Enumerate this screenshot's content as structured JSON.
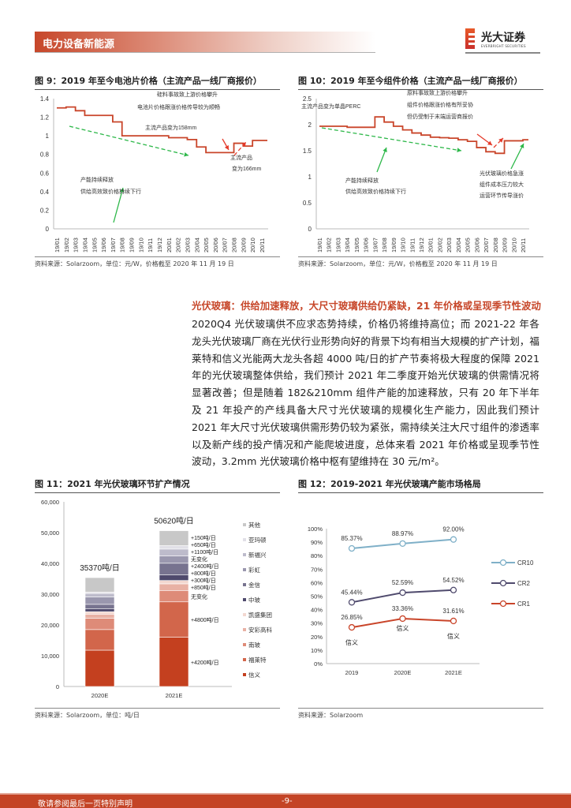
{
  "header": {
    "section": "电力设备新能源",
    "logo_cn": "光大证券",
    "logo_en": "EVERBRIGHT SECURITIES"
  },
  "fig9": {
    "title": "图 9：2019 年至今电池片价格（主流产品一线厂商报价）",
    "source": "资料来源：Solarzoom，单位：元/W，价格截至 2020 年 11 月 19 日",
    "annotations": [
      "主流产品变为158mm",
      "硅料事故致上游价格攀升",
      "电池片价格跟涨价格传导较为顺畅",
      "产能持续释放",
      "供给高效致价格持续下行",
      "主流产品",
      "变为166mm"
    ],
    "chart_data": {
      "type": "line",
      "ylim": [
        0,
        1.4
      ],
      "yticks": [
        "0",
        "0.2",
        "0.4",
        "0.6",
        "0.8",
        "1",
        "1.2",
        "1.4"
      ],
      "categories": [
        "19/01",
        "19/02",
        "19/03",
        "19/04",
        "19/05",
        "19/06",
        "19/07",
        "19/08",
        "19/09",
        "19/10",
        "19/11",
        "19/12",
        "20/01",
        "20/02",
        "20/03",
        "20/04",
        "20/05",
        "20/06",
        "20/07",
        "20/08",
        "20/09",
        "20/10",
        "20/11"
      ],
      "values": [
        1.3,
        1.31,
        1.27,
        1.22,
        1.22,
        1.22,
        1.15,
        1.0,
        1.0,
        1.0,
        1.0,
        1.0,
        0.98,
        0.98,
        0.96,
        0.88,
        0.82,
        0.82,
        0.82,
        0.92,
        0.89,
        0.95,
        0.95
      ],
      "color": "#c9452a"
    }
  },
  "fig10": {
    "title": "图 10：2019 年至今组件价格（主流产品一线厂商报价）",
    "source": "资料来源：Solarzoom，单位：元/W，价格截至 2020 年 11 月 19 日",
    "annotations": [
      "主流产品变为单晶PERC",
      "原料事故致上游价格攀升",
      "组件价格跟涨价格有所妥协",
      "但仍受制于末端运营商报价",
      "产能持续释放",
      "供给高效致价格持续下行",
      "光伏玻璃价格急涨",
      "组件成本压力较大",
      "运营环节传导涨价"
    ],
    "chart_data": {
      "type": "line",
      "ylim": [
        0,
        2.5
      ],
      "yticks": [
        "0",
        "0.5",
        "1",
        "1.5",
        "2",
        "2.5"
      ],
      "categories": [
        "19/01",
        "19/02",
        "19/03",
        "19/04",
        "19/05",
        "19/06",
        "19/07",
        "19/08",
        "19/09",
        "19/10",
        "19/11",
        "19/12",
        "20/01",
        "20/02",
        "20/03",
        "20/04",
        "20/05",
        "20/06",
        "20/07",
        "20/08",
        "20/09",
        "20/10",
        "20/11"
      ],
      "values": [
        1.97,
        1.97,
        1.97,
        1.95,
        1.95,
        1.95,
        2.15,
        2.05,
        1.97,
        1.9,
        1.84,
        1.8,
        1.76,
        1.75,
        1.74,
        1.71,
        1.68,
        1.56,
        1.48,
        1.45,
        1.69,
        1.69,
        1.71
      ],
      "color": "#c9452a"
    }
  },
  "body": {
    "heading": "光伏玻璃：供给加速释放，大尺寸玻璃供给仍紧缺，21 年价格或呈现季节性波动",
    "paragraph": "2020Q4 光伏玻璃供不应求态势持续，价格仍将维持高位；而 2021-22 年各龙头光伏玻璃厂商在光伏行业形势向好的背景下均有相当大规模的扩产计划，福莱特和信义光能两大龙头各超 4000 吨/日的扩产节奏将极大程度的保障 2021 年的光伏玻璃整体供给，我们预计 2021 年二季度开始光伏玻璃的供需情况将显著改善；但是随着 182&210mm 组件产能的加速释放，只有 20 年下半年及 21 年投产的产线具备大尺寸光伏玻璃的规模化生产能力，因此我们预计 2021 年大尺寸光伏玻璃供需形势仍较为紧张，需持续关注大尺寸组件的渗透率以及新产线的投产情况和产能爬坡进度，总体来看 2021 年价格或呈现季节性波动，3.2mm 光伏玻璃价格中枢有望维持在 30 元/m²。"
  },
  "fig11": {
    "title": "图 11：2021 年光伏玻璃环节扩产情况",
    "source": "资料来源：Solarzoom，单位：吨/日",
    "chart_data": {
      "type": "bar",
      "stacked": true,
      "ylim": [
        0,
        60000
      ],
      "yticks": [
        "0",
        "10,000",
        "20,000",
        "30,000",
        "40,000",
        "50,000",
        "60,000"
      ],
      "categories": [
        "2020E",
        "2021E"
      ],
      "totals": [
        "35370吨/日",
        "50620吨/日"
      ],
      "series": [
        {
          "name": "信义",
          "color": "#c4401f",
          "values": [
            11800,
            16000
          ],
          "label": "+4200吨/日"
        },
        {
          "name": "福莱特",
          "color": "#d2664b",
          "values": [
            6700,
            11500
          ],
          "label": "+4800吨/日"
        },
        {
          "name": "南玻",
          "color": "#de8b78",
          "values": [
            3700,
            3700
          ],
          "label": "无变化"
        },
        {
          "name": "安彩高科",
          "color": "#e8b1a4",
          "values": [
            1300,
            2150
          ],
          "label": "+850吨/日"
        },
        {
          "name": "凯盛集团",
          "color": "#f3d8d0",
          "values": [
            800,
            1100
          ],
          "label": "+300吨/日"
        },
        {
          "name": "中玻",
          "color": "#4f4a6d",
          "values": [
            1000,
            1800
          ],
          "label": "+800吨/日"
        },
        {
          "name": "金信",
          "color": "#77738f",
          "values": [
            1400,
            3800
          ],
          "label": "+2400吨/日"
        },
        {
          "name": "彩虹",
          "color": "#9a97ae",
          "values": [
            2400,
            2400
          ],
          "label": "无变化"
        },
        {
          "name": "新福兴",
          "color": "#bdbbcb",
          "values": [
            1100,
            2200
          ],
          "label": "+1100吨/日"
        },
        {
          "name": "亚玛顿",
          "color": "#e1e0e7",
          "values": [
            470,
            1120
          ],
          "label": "+650吨/日"
        },
        {
          "name": "其他",
          "color": "#c8c8c8",
          "values": [
            4700,
            4850
          ],
          "label": "+150吨/日"
        }
      ],
      "legend": "right"
    }
  },
  "fig12": {
    "title": "图 12：2019-2021 年光伏玻璃产能市场格局",
    "source": "资料来源：Solarzoom",
    "chart_data": {
      "type": "line",
      "ylim": [
        0,
        100
      ],
      "yticks": [
        "0%",
        "10%",
        "20%",
        "30%",
        "40%",
        "50%",
        "60%",
        "70%",
        "80%",
        "90%",
        "100%"
      ],
      "categories": [
        "2019",
        "2020E",
        "2021E"
      ],
      "series": [
        {
          "name": "CR10",
          "color": "#7fb0c8",
          "values": [
            85.37,
            88.97,
            92.0
          ],
          "labels": [
            "85.37%",
            "88.97%",
            "92.00%"
          ]
        },
        {
          "name": "CR2",
          "color": "#4f4a6d",
          "values": [
            45.44,
            52.59,
            54.52
          ],
          "labels": [
            "45.44%",
            "52.59%",
            "54.52%"
          ]
        },
        {
          "name": "CR1",
          "color": "#c9452a",
          "values": [
            26.85,
            33.36,
            31.61
          ],
          "labels": [
            "26.85%",
            "33.36%",
            "31.61%"
          ],
          "point_names": [
            "信义",
            "信义",
            "信义"
          ]
        }
      ],
      "legend": "right"
    }
  },
  "footer": {
    "disclaimer": "敬请参阅最后一页特别声明",
    "page": "-9-"
  }
}
